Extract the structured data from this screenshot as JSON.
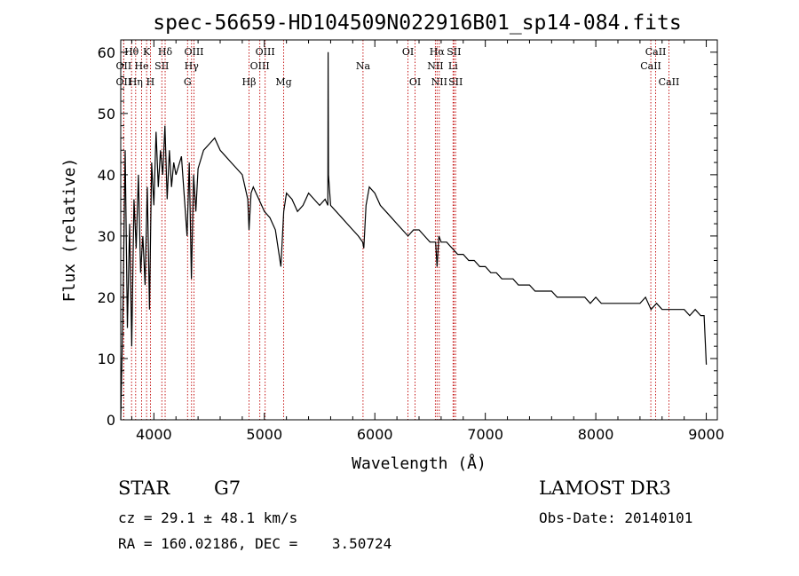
{
  "chart_data": {
    "type": "line",
    "title": "spec-56659-HD104509N022916B01_sp14-084.fits",
    "xlabel": "Wavelength (Å)",
    "ylabel": "Flux (relative)",
    "xlim": [
      3700,
      9100
    ],
    "ylim": [
      0,
      62
    ],
    "xticks": [
      4000,
      5000,
      6000,
      7000,
      8000,
      9000
    ],
    "yticks": [
      0,
      10,
      20,
      30,
      40,
      50,
      60
    ],
    "grid": false,
    "series": [
      {
        "name": "flux",
        "x": [
          3700,
          3720,
          3740,
          3760,
          3780,
          3800,
          3820,
          3840,
          3860,
          3880,
          3900,
          3920,
          3940,
          3960,
          3980,
          4000,
          4020,
          4040,
          4060,
          4080,
          4100,
          4120,
          4140,
          4160,
          4180,
          4200,
          4250,
          4300,
          4320,
          4340,
          4360,
          4380,
          4400,
          4450,
          4500,
          4550,
          4600,
          4650,
          4700,
          4750,
          4800,
          4850,
          4861,
          4880,
          4900,
          4950,
          5000,
          5050,
          5100,
          5150,
          5175,
          5200,
          5250,
          5300,
          5350,
          5400,
          5450,
          5500,
          5550,
          5575,
          5577,
          5580,
          5600,
          5650,
          5700,
          5750,
          5800,
          5850,
          5890,
          5900,
          5920,
          5950,
          6000,
          6050,
          6100,
          6150,
          6200,
          6250,
          6300,
          6350,
          6400,
          6450,
          6500,
          6550,
          6563,
          6580,
          6600,
          6650,
          6700,
          6750,
          6800,
          6850,
          6900,
          6950,
          7000,
          7050,
          7100,
          7150,
          7200,
          7250,
          7300,
          7350,
          7400,
          7450,
          7500,
          7550,
          7600,
          7650,
          7700,
          7750,
          7800,
          7850,
          7900,
          7950,
          8000,
          8050,
          8100,
          8150,
          8200,
          8250,
          8300,
          8350,
          8400,
          8450,
          8500,
          8550,
          8600,
          8650,
          8700,
          8750,
          8800,
          8850,
          8900,
          8950,
          8980,
          9000
        ],
        "y": [
          0,
          18,
          44,
          15,
          32,
          12,
          36,
          28,
          40,
          24,
          30,
          22,
          38,
          18,
          42,
          35,
          47,
          38,
          44,
          40,
          48,
          36,
          44,
          38,
          42,
          40,
          43,
          30,
          42,
          23,
          40,
          34,
          41,
          44,
          45,
          46,
          44,
          43,
          42,
          41,
          40,
          36,
          31,
          37,
          38,
          36,
          34,
          33,
          31,
          25,
          34,
          37,
          36,
          34,
          35,
          37,
          36,
          35,
          36,
          35,
          60,
          40,
          35,
          34,
          33,
          32,
          31,
          30,
          29,
          28,
          35,
          38,
          37,
          35,
          34,
          33,
          32,
          31,
          30,
          31,
          31,
          30,
          29,
          29,
          25,
          30,
          29,
          29,
          28,
          27,
          27,
          26,
          26,
          25,
          25,
          24,
          24,
          23,
          23,
          23,
          22,
          22,
          22,
          21,
          21,
          21,
          21,
          20,
          20,
          20,
          20,
          20,
          20,
          19,
          20,
          19,
          19,
          19,
          19,
          19,
          19,
          19,
          19,
          20,
          18,
          19,
          18,
          18,
          18,
          18,
          18,
          17,
          18,
          17,
          17,
          9
        ]
      }
    ],
    "lines": [
      {
        "label": "Hθ",
        "x": 3798,
        "row": 1
      },
      {
        "label": "OII",
        "x": 3727,
        "row": 2
      },
      {
        "label": "OII",
        "x": 3727,
        "row": 3
      },
      {
        "label": "He",
        "x": 3889,
        "row": 2
      },
      {
        "label": "Hη",
        "x": 3835,
        "row": 3
      },
      {
        "label": "K",
        "x": 3934,
        "row": 1
      },
      {
        "label": "H",
        "x": 3969,
        "row": 3
      },
      {
        "label": "SII",
        "x": 4072,
        "row": 2
      },
      {
        "label": "Hδ",
        "x": 4102,
        "row": 1
      },
      {
        "label": "OIII",
        "x": 4363,
        "row": 1
      },
      {
        "label": "Hγ",
        "x": 4341,
        "row": 2
      },
      {
        "label": "G",
        "x": 4305,
        "row": 3
      },
      {
        "label": "Hβ",
        "x": 4861,
        "row": 3
      },
      {
        "label": "OIII",
        "x": 5007,
        "row": 1
      },
      {
        "label": "OIII",
        "x": 4959,
        "row": 2
      },
      {
        "label": "Mg",
        "x": 5175,
        "row": 3
      },
      {
        "label": "Na",
        "x": 5893,
        "row": 2
      },
      {
        "label": "OI",
        "x": 6300,
        "row": 1
      },
      {
        "label": "OI",
        "x": 6364,
        "row": 3
      },
      {
        "label": "Hα",
        "x": 6563,
        "row": 1
      },
      {
        "label": "NII",
        "x": 6548,
        "row": 2
      },
      {
        "label": "NII",
        "x": 6583,
        "row": 3
      },
      {
        "label": "SII",
        "x": 6716,
        "row": 1
      },
      {
        "label": "Li",
        "x": 6708,
        "row": 2
      },
      {
        "label": "SII",
        "x": 6731,
        "row": 3
      },
      {
        "label": "CaII",
        "x": 8542,
        "row": 1
      },
      {
        "label": "CaII",
        "x": 8498,
        "row": 2
      },
      {
        "label": "CaII",
        "x": 8662,
        "row": 3
      }
    ]
  },
  "info": {
    "class": "STAR",
    "subclass": "G7",
    "survey": "LAMOST DR3",
    "cz": "cz = 29.1 ± 48.1 km/s",
    "obs_date": "Obs-Date: 20140101",
    "radec": "RA = 160.02186, DEC =    3.50724"
  }
}
